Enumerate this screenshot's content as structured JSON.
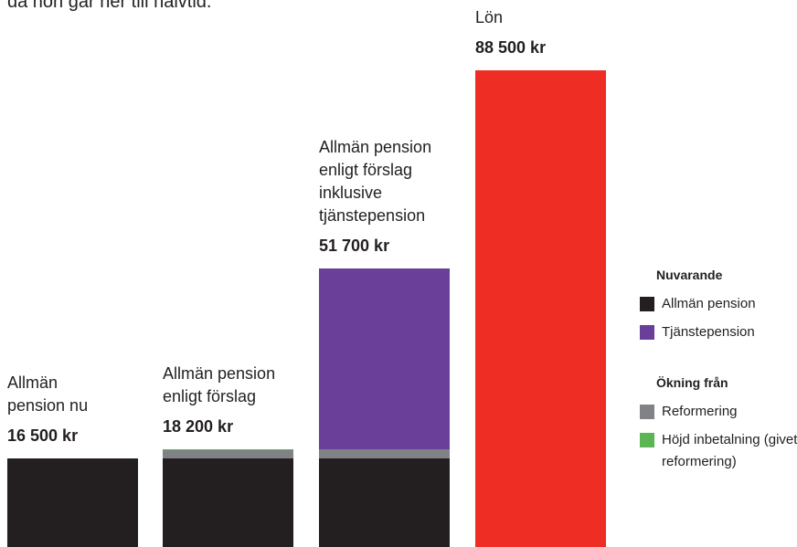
{
  "chart_data": {
    "type": "stacked-bar",
    "subtitle": "då hon går ner till halvtid.",
    "categories": [
      [
        "Allmän",
        "pension nu"
      ],
      [
        "Allmän pension",
        "enligt förslag"
      ],
      [
        "Allmän pension",
        "enligt förslag",
        "inklusive",
        "tjänstepension"
      ],
      [
        "Lön"
      ]
    ],
    "total_labels": [
      "16 500 kr",
      "18 200 kr",
      "51 700 kr",
      "88 500 kr"
    ],
    "legend_groups": [
      {
        "title": "Nuvarande",
        "series": [
          {
            "name": "Allmän pension",
            "color": "#231f20",
            "values": [
              16500,
              16500,
              16500,
              null
            ]
          },
          {
            "name": "Tjänstepension",
            "color": "#6a3f9a",
            "values": [
              null,
              null,
              33600,
              null
            ]
          }
        ]
      },
      {
        "title": "Ökning från",
        "series": [
          {
            "name": "Reformering",
            "color": "#808285",
            "values": [
              null,
              1400,
              1600,
              null
            ]
          },
          {
            "name": "Höjd inbetalning (givet reformering)",
            "color": "#5ab552",
            "values": [
              null,
              300,
              null,
              null
            ]
          }
        ]
      }
    ],
    "salary_bar": {
      "color": "#ee2e24",
      "values": [
        null,
        null,
        null,
        88500
      ]
    }
  }
}
